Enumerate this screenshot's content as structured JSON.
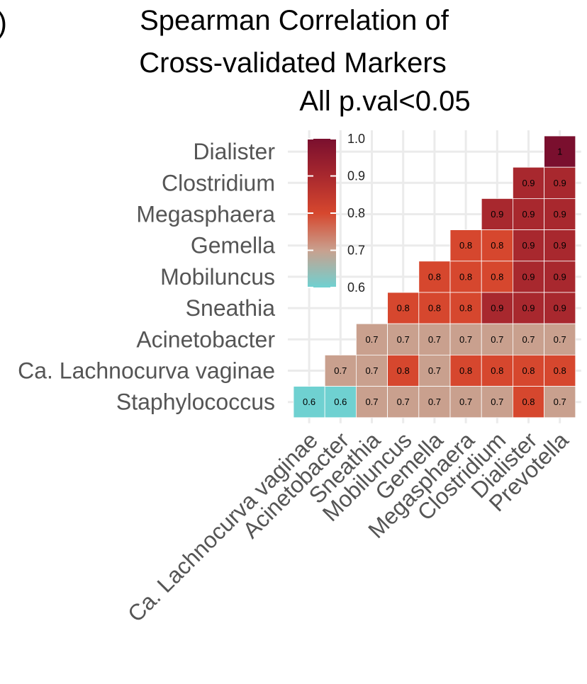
{
  "panel_label": ")",
  "chart_data": {
    "type": "heatmap",
    "title_lines": [
      "Spearman Correlation of",
      "Cross-validated Markers"
    ],
    "subtitle": "All p.val<0.05",
    "y_categories": [
      "Dialister",
      "Clostridium",
      "Megasphaera",
      "Gemella",
      "Mobiluncus",
      "Sneathia",
      "Acinetobacter",
      "Ca. Lachnocurva vaginae",
      "Staphylococcus"
    ],
    "x_categories": [
      "Ca. Lachnocurva vaginae",
      "Acinetobacter",
      "Sneathia",
      "Mobiluncus",
      "Gemella",
      "Megasphaera",
      "Clostridium",
      "Dialister",
      "Prevotella"
    ],
    "values": [
      [
        null,
        null,
        null,
        null,
        null,
        null,
        null,
        null,
        1
      ],
      [
        null,
        null,
        null,
        null,
        null,
        null,
        null,
        0.9,
        0.9
      ],
      [
        null,
        null,
        null,
        null,
        null,
        null,
        0.9,
        0.9,
        0.9
      ],
      [
        null,
        null,
        null,
        null,
        null,
        0.8,
        0.8,
        0.9,
        0.9
      ],
      [
        null,
        null,
        null,
        null,
        0.8,
        0.8,
        0.8,
        0.9,
        0.9
      ],
      [
        null,
        null,
        null,
        0.8,
        0.8,
        0.8,
        0.9,
        0.9,
        0.9
      ],
      [
        null,
        null,
        0.7,
        0.7,
        0.7,
        0.7,
        0.7,
        0.7,
        0.7
      ],
      [
        null,
        0.7,
        0.7,
        0.8,
        0.7,
        0.8,
        0.8,
        0.8,
        0.8
      ],
      [
        0.6,
        0.6,
        0.7,
        0.7,
        0.7,
        0.7,
        0.7,
        0.8,
        0.7
      ]
    ],
    "color_scale": {
      "stops": [
        {
          "value": 0.6,
          "color": "#6fd1d1"
        },
        {
          "value": 0.7,
          "color": "#c9a08e"
        },
        {
          "value": 0.8,
          "color": "#d6472e"
        },
        {
          "value": 0.9,
          "color": "#a8282e"
        },
        {
          "value": 1.0,
          "color": "#7a0f2e"
        }
      ],
      "range": [
        0.6,
        1.0
      ]
    },
    "legend": {
      "ticks": [
        "1.0",
        "0.9",
        "0.8",
        "0.7",
        "0.6"
      ],
      "tick_values": [
        1.0,
        0.9,
        0.8,
        0.7,
        0.6
      ],
      "placement": "top-left"
    },
    "grid": true
  }
}
